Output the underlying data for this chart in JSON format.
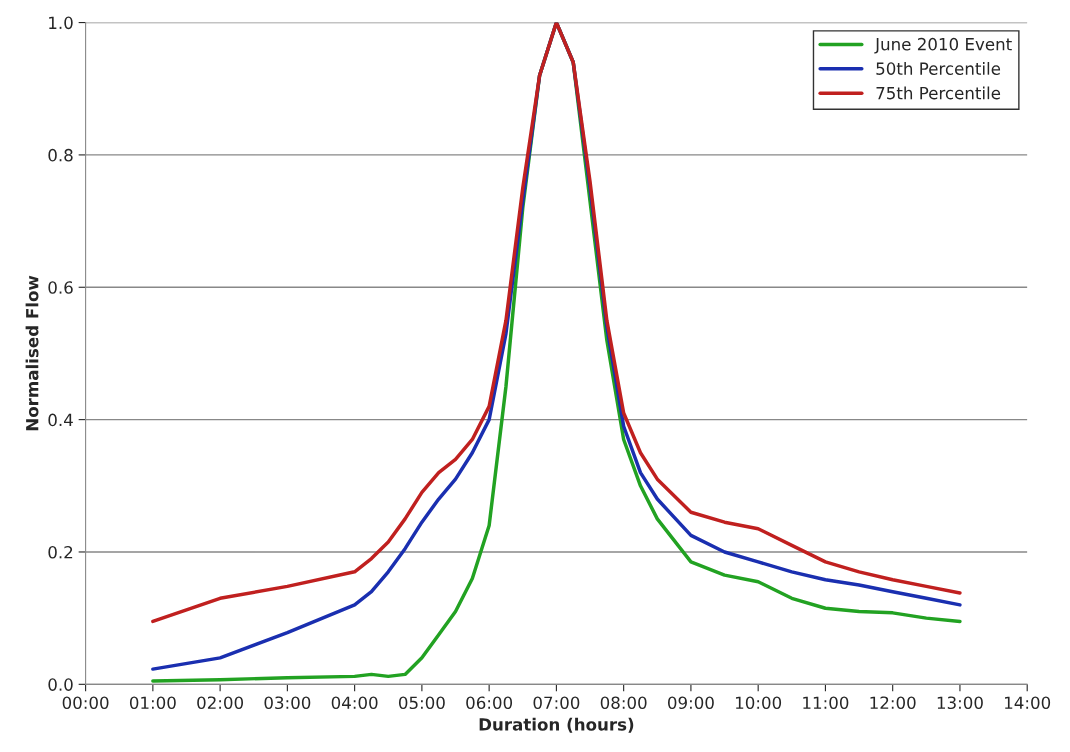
{
  "chart_data": {
    "type": "line",
    "xlabel": "Duration (hours)",
    "ylabel": "Normalised Flow",
    "x": [
      1,
      2,
      3,
      4,
      4.25,
      4.5,
      4.75,
      5,
      5.25,
      5.5,
      5.75,
      6,
      6.25,
      6.5,
      6.75,
      7,
      7.25,
      7.5,
      7.75,
      8,
      8.25,
      8.5,
      9,
      9.5,
      10,
      10.5,
      11,
      11.5,
      12,
      12.5,
      13
    ],
    "series": [
      {
        "name": "June 2010 Event",
        "color": "#22a222",
        "values": [
          0.005,
          0.007,
          0.01,
          0.012,
          0.015,
          0.012,
          0.015,
          0.04,
          0.075,
          0.11,
          0.16,
          0.24,
          0.45,
          0.72,
          0.92,
          1.0,
          0.94,
          null,
          0.52,
          0.37,
          0.3,
          0.25,
          0.185,
          0.165,
          0.155,
          0.13,
          0.115,
          0.11,
          0.108,
          0.1,
          0.095
        ]
      },
      {
        "name": "50th Percentile",
        "color": "#1a2fb0",
        "values": [
          0.023,
          0.04,
          0.078,
          0.12,
          0.14,
          0.17,
          0.205,
          0.245,
          0.28,
          0.31,
          0.35,
          0.4,
          0.53,
          0.73,
          0.92,
          1.0,
          0.94,
          0.75,
          0.54,
          0.39,
          0.32,
          0.28,
          0.225,
          0.2,
          0.185,
          0.17,
          0.158,
          0.15,
          0.14,
          0.13,
          0.12
        ]
      },
      {
        "name": "75th Percentile",
        "color": "#c0201f",
        "values": [
          0.095,
          0.13,
          0.148,
          0.17,
          0.19,
          0.215,
          0.25,
          0.29,
          0.32,
          0.34,
          0.37,
          0.42,
          0.55,
          0.75,
          0.92,
          1.0,
          0.94,
          0.76,
          0.55,
          0.41,
          0.35,
          0.31,
          0.26,
          0.245,
          0.235,
          0.21,
          0.185,
          0.17,
          0.158,
          0.148,
          0.138
        ]
      }
    ],
    "xlim": [
      0,
      14
    ],
    "xticks": [
      {
        "value": 0,
        "label": "00:00"
      },
      {
        "value": 1,
        "label": "01:00"
      },
      {
        "value": 2,
        "label": "02:00"
      },
      {
        "value": 3,
        "label": "03:00"
      },
      {
        "value": 4,
        "label": "04:00"
      },
      {
        "value": 5,
        "label": "05:00"
      },
      {
        "value": 6,
        "label": "06:00"
      },
      {
        "value": 7,
        "label": "07:00"
      },
      {
        "value": 8,
        "label": "08:00"
      },
      {
        "value": 9,
        "label": "09:00"
      },
      {
        "value": 10,
        "label": "10:00"
      },
      {
        "value": 11,
        "label": "11:00"
      },
      {
        "value": 12,
        "label": "12:00"
      },
      {
        "value": 13,
        "label": "13:00"
      },
      {
        "value": 14,
        "label": "14:00"
      }
    ],
    "ylim": [
      0,
      1
    ],
    "yticks": [
      {
        "value": 0,
        "label": "0.0"
      },
      0.2,
      0.4,
      0.6,
      0.8,
      {
        "value": 1,
        "label": "1.0"
      }
    ],
    "grid": "y",
    "legend": "top right",
    "marker": "none",
    "line_style": "solid"
  }
}
